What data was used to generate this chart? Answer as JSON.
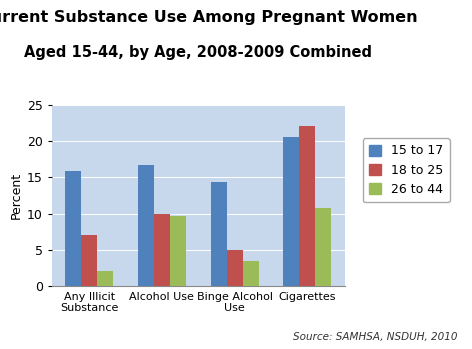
{
  "title_line1": "Current Substance Use Among Pregnant Women",
  "title_line2": "Aged 15-44, by Age, 2008-2009 Combined",
  "categories": [
    "Any Illicit\nSubstance",
    "Alcohol Use",
    "Binge Alcohol\nUse",
    "Cigarettes"
  ],
  "series": {
    "15 to 17": [
      15.9,
      16.7,
      14.4,
      20.6
    ],
    "18 to 25": [
      7.0,
      10.0,
      5.0,
      22.0
    ],
    "26 to 44": [
      2.1,
      9.6,
      3.5,
      10.8
    ]
  },
  "colors": {
    "15 to 17": "#4F81BD",
    "18 to 25": "#C0504D",
    "26 to 44": "#9BBB59"
  },
  "ylabel": "Percent",
  "ylim": [
    0,
    25
  ],
  "yticks": [
    0,
    5,
    10,
    15,
    20,
    25
  ],
  "legend_labels": [
    "15 to 17",
    "18 to 25",
    "26 to 44"
  ],
  "source_text": "Source: SAMHSA, NSDUH, 2010",
  "plot_bg_color": "#C8D8EC",
  "fig_bg_color": "#ffffff",
  "title_fontsize": 11.5,
  "subtitle_fontsize": 10.5,
  "axis_label_fontsize": 9,
  "tick_fontsize": 9,
  "bar_width": 0.22,
  "legend_fontsize": 9
}
